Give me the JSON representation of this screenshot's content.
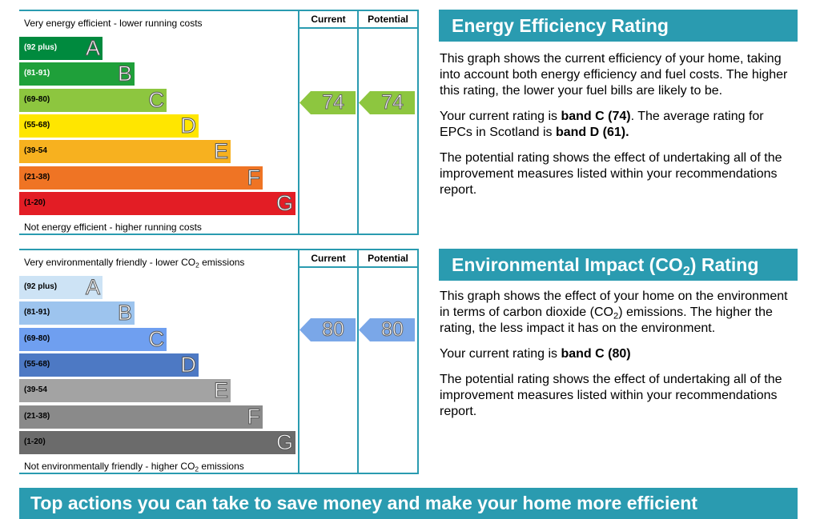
{
  "energy_chart": {
    "top_note": "Very energy efficient - lower running costs",
    "bottom_note": "Not energy efficient - higher running costs",
    "col_current": "Current",
    "col_potential": "Potential",
    "current_value": "74",
    "potential_value": "74",
    "arrow_color": "#8dc63f",
    "bands": [
      {
        "range": "(92 plus)",
        "letter": "A",
        "color": "#008a3e",
        "range_light": true
      },
      {
        "range": "(81-91)",
        "letter": "B",
        "color": "#1fa03a",
        "range_light": true
      },
      {
        "range": "(69-80)",
        "letter": "C",
        "color": "#8dc63f",
        "range_light": false
      },
      {
        "range": "(55-68)",
        "letter": "D",
        "color": "#ffe600",
        "range_light": false
      },
      {
        "range": "(39-54",
        "letter": "E",
        "color": "#f7b11f",
        "range_light": false
      },
      {
        "range": "(21-38)",
        "letter": "F",
        "color": "#ef7424",
        "range_light": false
      },
      {
        "range": "(1-20)",
        "letter": "G",
        "color": "#e31d25",
        "range_light": false
      }
    ]
  },
  "env_chart": {
    "top_note_pre": "Very environmentally friendly - lower CO",
    "top_note_sub": "2",
    "top_note_post": " emissions",
    "bottom_note_pre": "Not environmentally friendly - higher CO",
    "bottom_note_sub": "2",
    "bottom_note_post": " emissions",
    "col_current": "Current",
    "col_potential": "Potential",
    "current_value": "80",
    "potential_value": "80",
    "arrow_color": "#7aa7e8",
    "bands": [
      {
        "range": "(92 plus)",
        "letter": "A",
        "color": "#cde3f5",
        "range_light": false
      },
      {
        "range": "(81-91)",
        "letter": "B",
        "color": "#9dc4ee",
        "range_light": false
      },
      {
        "range": "(69-80)",
        "letter": "C",
        "color": "#6f9ff0",
        "range_light": false
      },
      {
        "range": "(55-68)",
        "letter": "D",
        "color": "#4d79c4",
        "range_light": false
      },
      {
        "range": "(39-54",
        "letter": "E",
        "color": "#a3a3a3",
        "range_light": false
      },
      {
        "range": "(21-38)",
        "letter": "F",
        "color": "#8a8a8a",
        "range_light": false
      },
      {
        "range": "(1-20)",
        "letter": "G",
        "color": "#6b6b6b",
        "range_light": false
      }
    ]
  },
  "energy_panel": {
    "heading": "Energy Efficiency Rating",
    "p1": "This graph shows the current efficiency of your home, taking into account both energy efficiency and fuel costs. The higher this rating, the lower your fuel bills are likely to be.",
    "p2_pre": "Your current rating is ",
    "p2_bold1": "band C (74)",
    "p2_mid": ". The average rating for EPCs in Scotland is ",
    "p2_bold2": "band D (61).",
    "p3": "The potential rating shows the effect of undertaking all of the improvement measures listed within your recommendations report."
  },
  "env_panel": {
    "heading_pre": "Environmental Impact (CO",
    "heading_sub": "2",
    "heading_post": ") Rating",
    "p1_pre": "This graph shows the effect of your home on the environment in terms of carbon dioxide (CO",
    "p1_sub": "2",
    "p1_post": ") emissions. The higher the rating, the less impact it has on the environment.",
    "p2_pre": "Your current rating is ",
    "p2_bold": "band C (80)",
    "p3": "The potential rating shows the effect of undertaking all of the improvement measures listed within your recommendations report."
  },
  "footer": {
    "text": "Top actions you can take to save money and make your home more efficient"
  }
}
